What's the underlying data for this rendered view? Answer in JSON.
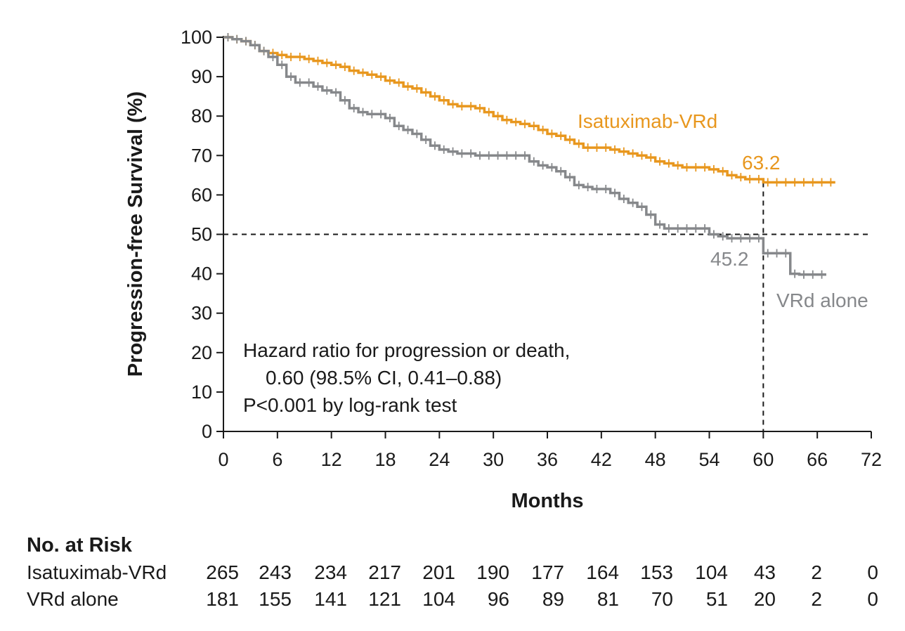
{
  "chart_data": {
    "type": "line",
    "title": "",
    "xlabel": "Months",
    "ylabel": "Progression-free Survival (%)",
    "xlim": [
      0,
      72
    ],
    "ylim": [
      0,
      100
    ],
    "x_ticks": [
      0,
      6,
      12,
      18,
      24,
      30,
      36,
      42,
      48,
      54,
      60,
      66,
      72
    ],
    "y_ticks": [
      0,
      10,
      20,
      30,
      40,
      50,
      60,
      70,
      80,
      90,
      100
    ],
    "reference_lines": {
      "horizontal_y": 50,
      "vertical_x": 60
    },
    "series": [
      {
        "name": "Isatuximab-VRd",
        "color": "#E8971E",
        "end_label": "63.2",
        "x": [
          0,
          1,
          2,
          3,
          4,
          5,
          6,
          7,
          8,
          9,
          10,
          11,
          12,
          13,
          14,
          15,
          16,
          17,
          18,
          19,
          20,
          21,
          22,
          23,
          24,
          25,
          26,
          27,
          28,
          29,
          30,
          31,
          32,
          33,
          34,
          35,
          36,
          37,
          38,
          39,
          40,
          41,
          42,
          43,
          44,
          45,
          46,
          47,
          48,
          49,
          50,
          51,
          52,
          53,
          54,
          55,
          56,
          57,
          58,
          59,
          60,
          61,
          62,
          63,
          64,
          65,
          66,
          67,
          68
        ],
        "y": [
          100,
          99.5,
          99,
          98,
          96.5,
          96,
          95.5,
          95,
          95,
          94.5,
          94,
          93.5,
          93,
          92.5,
          91.5,
          91,
          90.5,
          90,
          89,
          88.5,
          87.5,
          87,
          86,
          85,
          84,
          83,
          82.5,
          82.5,
          82,
          81,
          80,
          79,
          78.5,
          78,
          77.5,
          76.5,
          75.5,
          75,
          74,
          73,
          72,
          72,
          72,
          71.5,
          71,
          70.5,
          70,
          69.5,
          68.5,
          68,
          67.5,
          67,
          67,
          67,
          66.5,
          66,
          65,
          64.5,
          64,
          64,
          63.2,
          63.2,
          63.2,
          63.2,
          63.2,
          63.2,
          63.2,
          63.2,
          63.2
        ]
      },
      {
        "name": "VRd alone",
        "color": "#86888B",
        "end_label": "45.2",
        "x": [
          0,
          1,
          2,
          3,
          4,
          5,
          6,
          7,
          8,
          9,
          10,
          11,
          12,
          13,
          14,
          15,
          16,
          17,
          18,
          19,
          20,
          21,
          22,
          23,
          24,
          25,
          26,
          27,
          28,
          29,
          30,
          31,
          32,
          33,
          34,
          35,
          36,
          37,
          38,
          39,
          40,
          41,
          42,
          43,
          44,
          45,
          46,
          47,
          48,
          49,
          50,
          51,
          52,
          53,
          54,
          55,
          56,
          57,
          58,
          59,
          59.99,
          60,
          61,
          62,
          62.99,
          63,
          64,
          65,
          66,
          67
        ],
        "y": [
          100,
          99.5,
          99,
          98,
          96.5,
          95,
          93,
          90,
          88.5,
          88.5,
          87.5,
          86.5,
          86,
          84,
          82,
          81,
          80.5,
          80.5,
          79.5,
          77.5,
          76.5,
          75.5,
          74,
          72.5,
          71.5,
          71,
          70.5,
          70.5,
          70,
          70,
          70,
          70,
          70,
          70,
          68.5,
          67.5,
          67,
          66,
          64.5,
          62.5,
          62,
          61.5,
          61.5,
          60.5,
          59,
          58,
          57,
          55,
          52.5,
          51.5,
          51.5,
          51.5,
          51.5,
          51.5,
          50,
          49.5,
          49,
          49,
          49,
          49,
          49,
          45.2,
          45.2,
          45.2,
          45.2,
          40,
          39.8,
          39.8,
          39.8,
          39.8
        ]
      }
    ],
    "annotation": {
      "line1": "Hazard ratio for progression or death,",
      "line2": "0.60 (98.5% CI, 0.41–0.88)",
      "line3": "P<0.001 by log-rank test"
    }
  },
  "risk_table": {
    "title": "No. at Risk",
    "rows": [
      {
        "name": "Isatuximab-VRd",
        "values": [
          "265",
          "243",
          "234",
          "217",
          "201",
          "190",
          "177",
          "164",
          "153",
          "104",
          "43",
          "2",
          "0"
        ]
      },
      {
        "name": "VRd alone",
        "values": [
          "181",
          "155",
          "141",
          "121",
          "104",
          "96",
          "89",
          "81",
          "70",
          "51",
          "20",
          "2",
          "0"
        ]
      }
    ]
  }
}
